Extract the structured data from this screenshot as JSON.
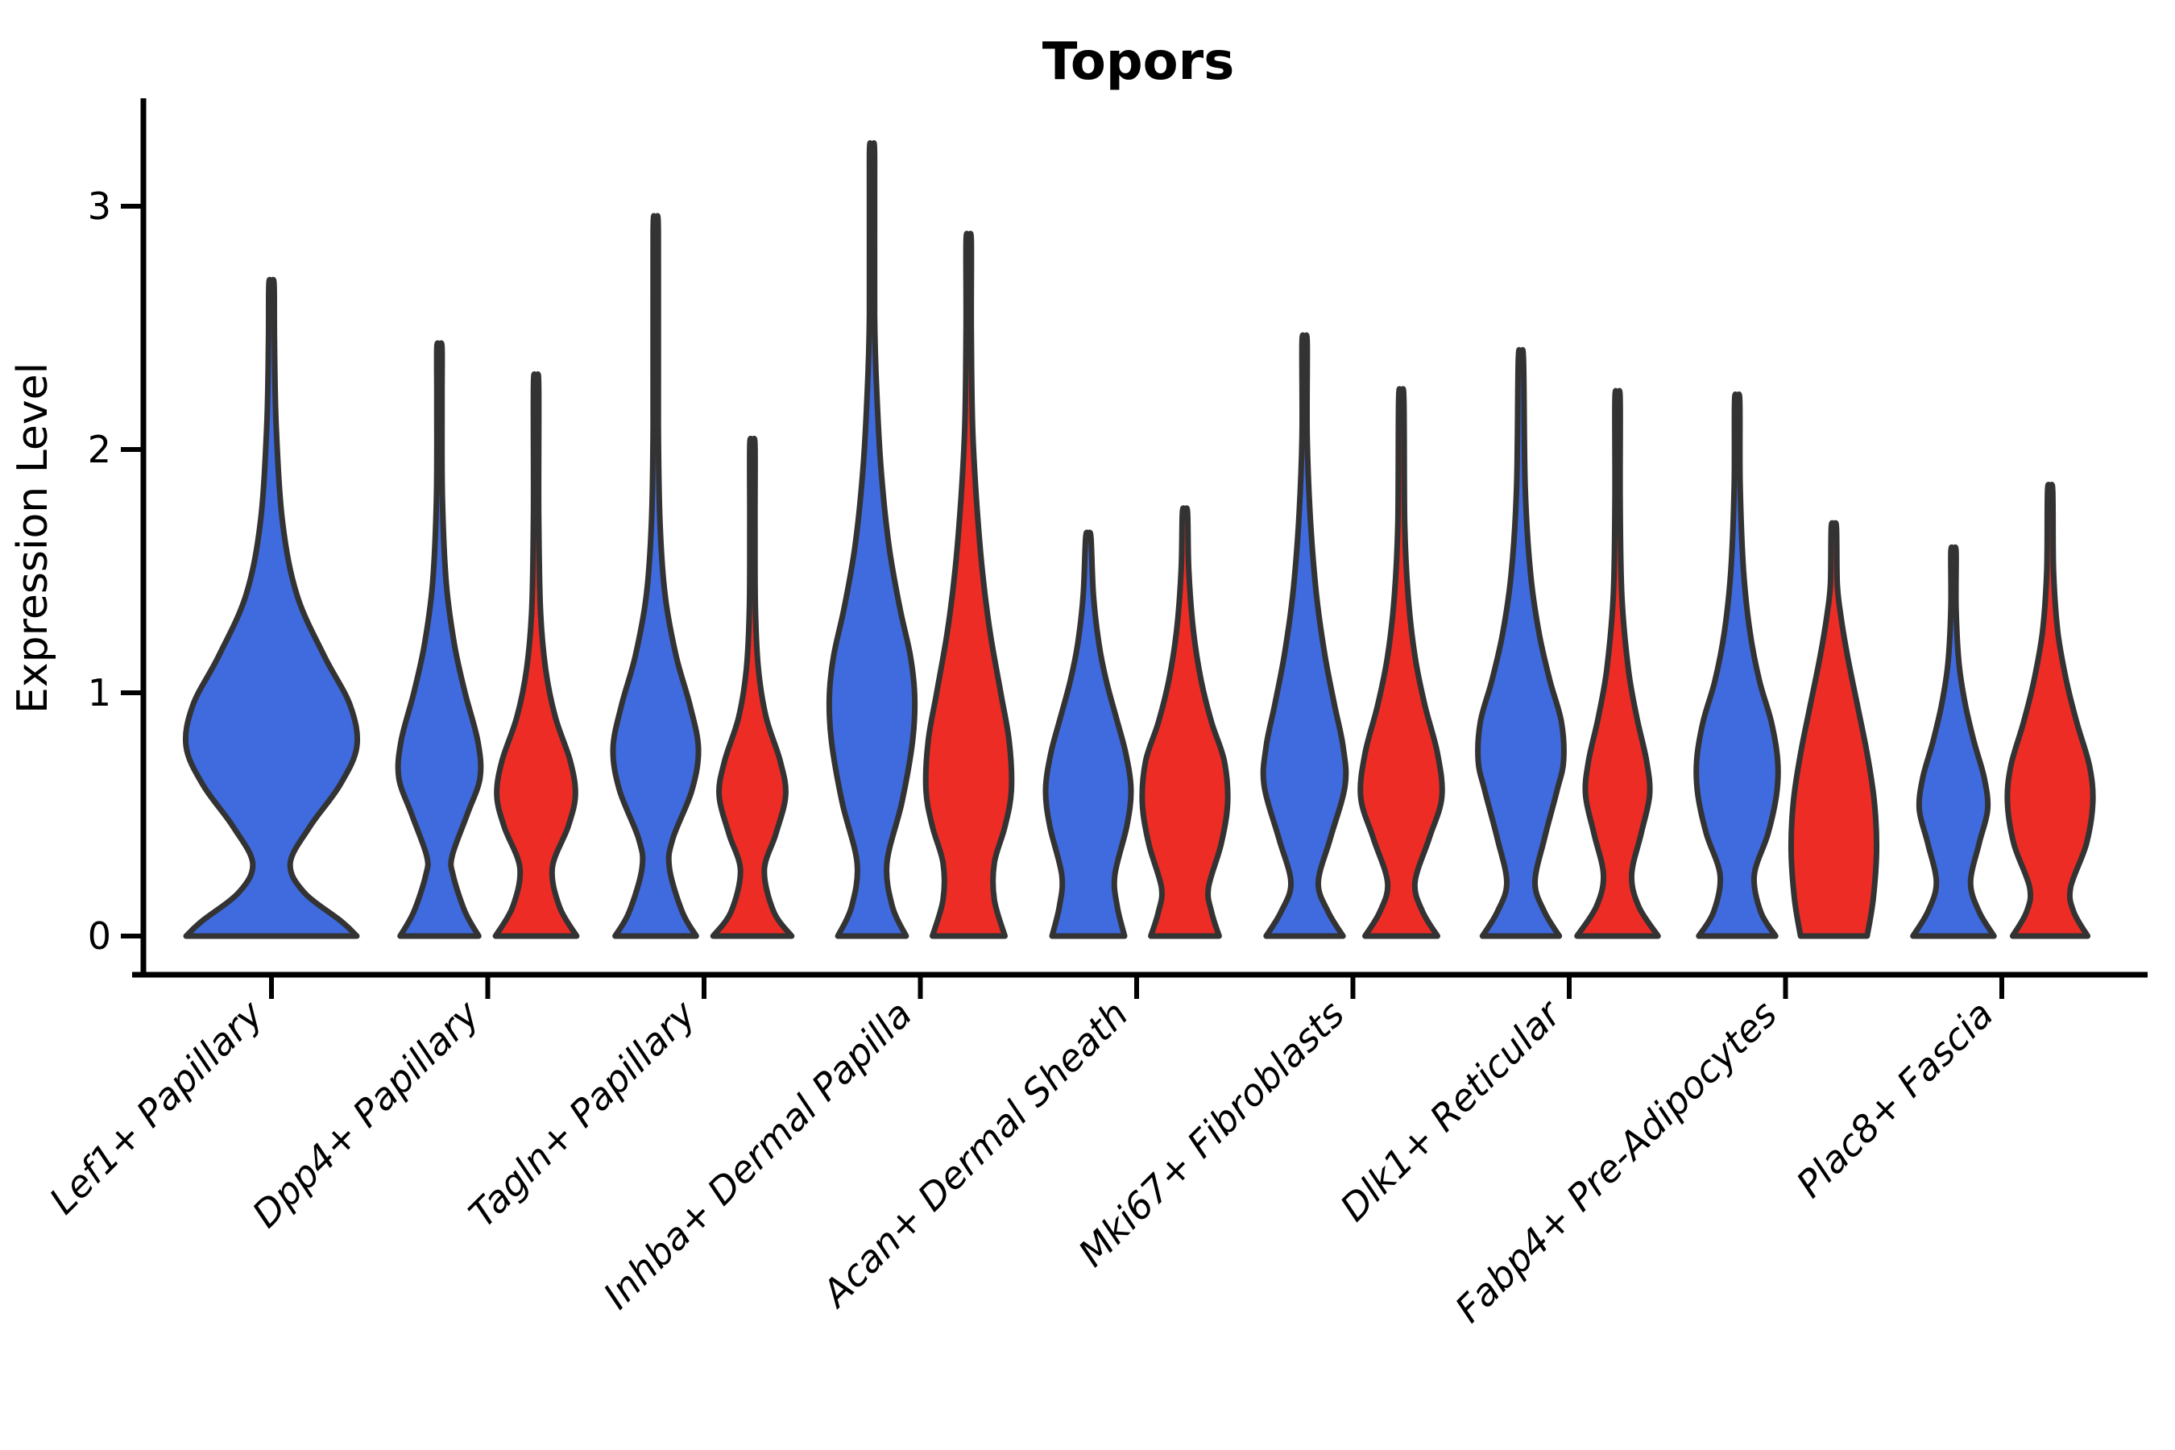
{
  "chart_data": {
    "type": "violin",
    "title": "Topors",
    "ylabel": "Expression Level",
    "ylim": [
      0,
      3.37
    ],
    "yticks": [
      "0",
      "1",
      "2",
      "3"
    ],
    "grid": false,
    "legend": "none",
    "categories": [
      "Lef1+ Papillary",
      "Dpp4+ Papillary",
      "Tagln+ Papillary",
      "Inhba+ Dermal Papilla",
      "Acan+ Dermal Sheath",
      "Mki67+ Fibroblasts",
      "Dlk1+ Reticular",
      "Fabp4+ Pre-Adipocytes",
      "Plac8+ Fascia"
    ],
    "groups": [
      "blue",
      "red"
    ],
    "group_colors": {
      "blue": "#3F6BDE",
      "red": "#EE2C26"
    },
    "outline_color": "#333333",
    "violins": [
      {
        "category": "Lef1+ Papillary",
        "group": "blue",
        "peak": 2.68,
        "profile": [
          [
            0,
            1.0
          ],
          [
            0.06,
            0.82
          ],
          [
            0.18,
            0.38
          ],
          [
            0.3,
            0.22
          ],
          [
            0.45,
            0.45
          ],
          [
            0.62,
            0.8
          ],
          [
            0.78,
            1.0
          ],
          [
            0.95,
            0.92
          ],
          [
            1.15,
            0.62
          ],
          [
            1.4,
            0.3
          ],
          [
            1.7,
            0.13
          ],
          [
            2.1,
            0.055
          ],
          [
            2.45,
            0.035
          ],
          [
            2.68,
            0.03
          ]
        ]
      },
      {
        "category": "Dpp4+ Papillary",
        "group": "blue",
        "peak": 2.42,
        "profile": [
          [
            0,
            0.92
          ],
          [
            0.1,
            0.6
          ],
          [
            0.25,
            0.32
          ],
          [
            0.33,
            0.3
          ],
          [
            0.5,
            0.65
          ],
          [
            0.65,
            0.95
          ],
          [
            0.8,
            0.9
          ],
          [
            1.0,
            0.6
          ],
          [
            1.2,
            0.35
          ],
          [
            1.45,
            0.16
          ],
          [
            1.8,
            0.07
          ],
          [
            2.2,
            0.04
          ],
          [
            2.42,
            0.03
          ]
        ]
      },
      {
        "category": "Dpp4+ Papillary",
        "group": "red",
        "peak": 2.27,
        "profile": [
          [
            0,
            0.95
          ],
          [
            0.12,
            0.55
          ],
          [
            0.28,
            0.38
          ],
          [
            0.45,
            0.75
          ],
          [
            0.58,
            0.92
          ],
          [
            0.72,
            0.8
          ],
          [
            0.9,
            0.45
          ],
          [
            1.1,
            0.22
          ],
          [
            1.35,
            0.1
          ],
          [
            1.75,
            0.05
          ],
          [
            2.27,
            0.03
          ]
        ]
      },
      {
        "category": "Tagln+ Papillary",
        "group": "blue",
        "peak": 2.9,
        "profile": [
          [
            0,
            0.95
          ],
          [
            0.1,
            0.62
          ],
          [
            0.28,
            0.32
          ],
          [
            0.4,
            0.4
          ],
          [
            0.6,
            0.85
          ],
          [
            0.77,
            1.0
          ],
          [
            0.95,
            0.8
          ],
          [
            1.15,
            0.48
          ],
          [
            1.4,
            0.22
          ],
          [
            1.7,
            0.1
          ],
          [
            2.1,
            0.05
          ],
          [
            2.9,
            0.028
          ]
        ]
      },
      {
        "category": "Tagln+ Papillary",
        "group": "red",
        "peak": 2.02,
        "profile": [
          [
            0,
            0.92
          ],
          [
            0.1,
            0.5
          ],
          [
            0.27,
            0.28
          ],
          [
            0.42,
            0.55
          ],
          [
            0.58,
            0.78
          ],
          [
            0.72,
            0.65
          ],
          [
            0.9,
            0.32
          ],
          [
            1.1,
            0.14
          ],
          [
            1.35,
            0.07
          ],
          [
            1.7,
            0.045
          ],
          [
            2.02,
            0.028
          ]
        ]
      },
      {
        "category": "Inhba+ Dermal Papilla",
        "group": "blue",
        "peak": 3.21,
        "profile": [
          [
            0,
            0.8
          ],
          [
            0.12,
            0.48
          ],
          [
            0.3,
            0.35
          ],
          [
            0.55,
            0.7
          ],
          [
            0.8,
            0.95
          ],
          [
            0.98,
            1.0
          ],
          [
            1.15,
            0.9
          ],
          [
            1.35,
            0.65
          ],
          [
            1.6,
            0.4
          ],
          [
            1.9,
            0.22
          ],
          [
            2.2,
            0.12
          ],
          [
            2.55,
            0.06
          ],
          [
            3.21,
            0.028
          ]
        ]
      },
      {
        "category": "Inhba+ Dermal Papilla",
        "group": "red",
        "peak": 2.86,
        "profile": [
          [
            0,
            0.85
          ],
          [
            0.15,
            0.6
          ],
          [
            0.3,
            0.6
          ],
          [
            0.45,
            0.85
          ],
          [
            0.6,
            1.0
          ],
          [
            0.8,
            0.95
          ],
          [
            1.0,
            0.75
          ],
          [
            1.25,
            0.5
          ],
          [
            1.5,
            0.32
          ],
          [
            1.8,
            0.18
          ],
          [
            2.1,
            0.09
          ],
          [
            2.5,
            0.05
          ],
          [
            2.86,
            0.028
          ]
        ]
      },
      {
        "category": "Acan+ Dermal Sheath",
        "group": "blue",
        "peak": 1.64,
        "profile": [
          [
            0,
            0.85
          ],
          [
            0.12,
            0.68
          ],
          [
            0.25,
            0.62
          ],
          [
            0.45,
            0.9
          ],
          [
            0.6,
            1.0
          ],
          [
            0.75,
            0.88
          ],
          [
            0.9,
            0.65
          ],
          [
            1.05,
            0.42
          ],
          [
            1.2,
            0.25
          ],
          [
            1.4,
            0.12
          ],
          [
            1.64,
            0.05
          ]
        ]
      },
      {
        "category": "Acan+ Dermal Sheath",
        "group": "red",
        "peak": 1.74,
        "profile": [
          [
            0,
            0.8
          ],
          [
            0.1,
            0.62
          ],
          [
            0.2,
            0.55
          ],
          [
            0.38,
            0.85
          ],
          [
            0.55,
            1.0
          ],
          [
            0.72,
            0.92
          ],
          [
            0.88,
            0.62
          ],
          [
            1.05,
            0.38
          ],
          [
            1.25,
            0.2
          ],
          [
            1.5,
            0.09
          ],
          [
            1.74,
            0.045
          ]
        ]
      },
      {
        "category": "Mki67+ Fibroblasts",
        "group": "blue",
        "peak": 2.44,
        "profile": [
          [
            0,
            0.9
          ],
          [
            0.1,
            0.55
          ],
          [
            0.22,
            0.32
          ],
          [
            0.4,
            0.6
          ],
          [
            0.62,
            0.95
          ],
          [
            0.78,
            0.9
          ],
          [
            0.95,
            0.7
          ],
          [
            1.15,
            0.48
          ],
          [
            1.4,
            0.28
          ],
          [
            1.7,
            0.14
          ],
          [
            2.05,
            0.06
          ],
          [
            2.44,
            0.03
          ]
        ]
      },
      {
        "category": "Mki67+ Fibroblasts",
        "group": "red",
        "peak": 2.21,
        "profile": [
          [
            0,
            0.85
          ],
          [
            0.1,
            0.5
          ],
          [
            0.22,
            0.32
          ],
          [
            0.4,
            0.65
          ],
          [
            0.57,
            0.95
          ],
          [
            0.75,
            0.85
          ],
          [
            0.95,
            0.55
          ],
          [
            1.15,
            0.32
          ],
          [
            1.4,
            0.16
          ],
          [
            1.7,
            0.08
          ],
          [
            2.21,
            0.03
          ]
        ]
      },
      {
        "category": "Dlk1+ Reticular",
        "group": "blue",
        "peak": 2.37,
        "profile": [
          [
            0,
            0.9
          ],
          [
            0.1,
            0.55
          ],
          [
            0.22,
            0.33
          ],
          [
            0.4,
            0.55
          ],
          [
            0.6,
            0.85
          ],
          [
            0.72,
            1.0
          ],
          [
            0.88,
            0.95
          ],
          [
            1.05,
            0.68
          ],
          [
            1.25,
            0.42
          ],
          [
            1.5,
            0.22
          ],
          [
            1.85,
            0.1
          ],
          [
            2.37,
            0.03
          ]
        ]
      },
      {
        "category": "Dlk1+ Reticular",
        "group": "red",
        "peak": 2.21,
        "profile": [
          [
            0,
            0.95
          ],
          [
            0.12,
            0.5
          ],
          [
            0.25,
            0.33
          ],
          [
            0.42,
            0.55
          ],
          [
            0.58,
            0.75
          ],
          [
            0.72,
            0.68
          ],
          [
            0.9,
            0.45
          ],
          [
            1.1,
            0.25
          ],
          [
            1.4,
            0.1
          ],
          [
            1.8,
            0.05
          ],
          [
            2.21,
            0.03
          ]
        ]
      },
      {
        "category": "Fabp4+ Pre-Adipocytes",
        "group": "blue",
        "peak": 2.2,
        "profile": [
          [
            0,
            0.9
          ],
          [
            0.1,
            0.55
          ],
          [
            0.25,
            0.4
          ],
          [
            0.42,
            0.72
          ],
          [
            0.58,
            0.92
          ],
          [
            0.72,
            0.95
          ],
          [
            0.88,
            0.8
          ],
          [
            1.05,
            0.52
          ],
          [
            1.25,
            0.3
          ],
          [
            1.5,
            0.15
          ],
          [
            1.85,
            0.07
          ],
          [
            2.2,
            0.03
          ]
        ]
      },
      {
        "category": "Fabp4+ Pre-Adipocytes",
        "group": "red",
        "peak": 1.68,
        "profile": [
          [
            0,
            0.78
          ],
          [
            0.15,
            0.92
          ],
          [
            0.35,
            1.0
          ],
          [
            0.55,
            0.95
          ],
          [
            0.75,
            0.78
          ],
          [
            0.95,
            0.55
          ],
          [
            1.15,
            0.32
          ],
          [
            1.32,
            0.16
          ],
          [
            1.45,
            0.08
          ],
          [
            1.68,
            0.035
          ]
        ]
      },
      {
        "category": "Plac8+ Fascia",
        "group": "blue",
        "peak": 1.58,
        "profile": [
          [
            0,
            0.95
          ],
          [
            0.1,
            0.6
          ],
          [
            0.22,
            0.4
          ],
          [
            0.38,
            0.6
          ],
          [
            0.52,
            0.8
          ],
          [
            0.65,
            0.72
          ],
          [
            0.8,
            0.48
          ],
          [
            0.95,
            0.28
          ],
          [
            1.12,
            0.13
          ],
          [
            1.35,
            0.06
          ],
          [
            1.58,
            0.03
          ]
        ]
      },
      {
        "category": "Plac8+ Fascia",
        "group": "red",
        "peak": 1.83,
        "profile": [
          [
            0,
            0.88
          ],
          [
            0.1,
            0.55
          ],
          [
            0.2,
            0.48
          ],
          [
            0.38,
            0.85
          ],
          [
            0.55,
            1.0
          ],
          [
            0.7,
            0.92
          ],
          [
            0.88,
            0.62
          ],
          [
            1.05,
            0.38
          ],
          [
            1.25,
            0.18
          ],
          [
            1.5,
            0.08
          ],
          [
            1.83,
            0.03
          ]
        ]
      }
    ]
  }
}
